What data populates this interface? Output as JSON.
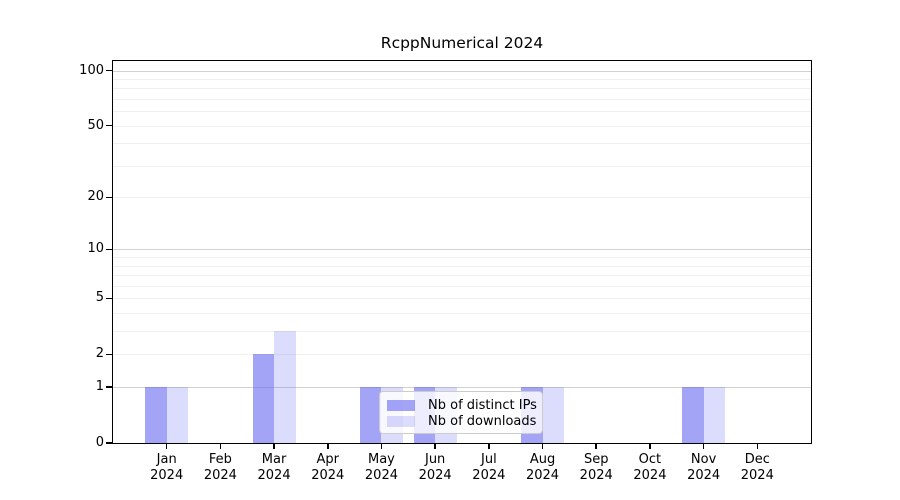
{
  "chart_data": {
    "type": "bar",
    "title": "RcppNumerical 2024",
    "categories": [
      "Jan",
      "Feb",
      "Mar",
      "Apr",
      "May",
      "Jun",
      "Jul",
      "Aug",
      "Sep",
      "Oct",
      "Nov",
      "Dec"
    ],
    "year": "2024",
    "series": [
      {
        "name": "Nb of distinct IPs",
        "color": "rgba(90,90,240,0.55)",
        "values": [
          1,
          0,
          2,
          0,
          1,
          1,
          0,
          1,
          0,
          0,
          1,
          0
        ]
      },
      {
        "name": "Nb of downloads",
        "color": "rgba(90,90,240,0.21)",
        "values": [
          1,
          0,
          3,
          0,
          1,
          1,
          0,
          1,
          0,
          0,
          1,
          0
        ]
      }
    ],
    "xlabel": "",
    "ylabel": "",
    "yscale": "log1p",
    "ylim": [
      0,
      113
    ],
    "ytick_labels": [
      "0",
      "1",
      "2",
      "5",
      "10",
      "20",
      "50",
      "100"
    ],
    "ytick_values": [
      0,
      1,
      2,
      5,
      10,
      20,
      50,
      100
    ],
    "major_grid_values": [
      1,
      10,
      100
    ],
    "minor_grid_values": [
      2,
      3,
      4,
      5,
      6,
      7,
      8,
      9,
      20,
      30,
      40,
      50,
      60,
      70,
      80,
      90
    ],
    "grid": "horizontal",
    "legend_position": "inside-lower-center"
  },
  "colors": {
    "background": "#ffffff",
    "major_grid": "#d2d2d2",
    "minor_grid": "#f0f0f0",
    "spine": "#000000",
    "tick_label": "#000000",
    "legend_border": "#cccccc",
    "legend_background": "rgba(255,255,255,0.8)"
  }
}
